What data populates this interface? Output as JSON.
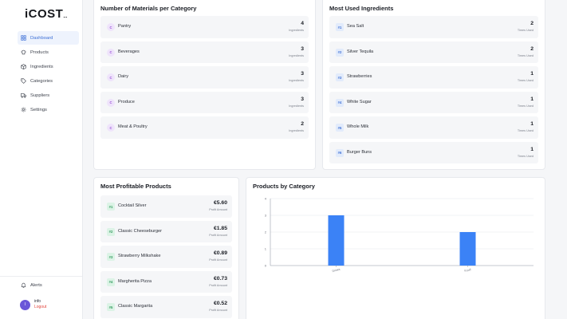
{
  "sidebar": {
    "logo": "iCOST",
    "logo_suffix": "...",
    "items": [
      {
        "label": "Dashboard",
        "icon": "dashboard-icon",
        "active": true
      },
      {
        "label": "Products",
        "icon": "chef-hat-icon"
      },
      {
        "label": "Ingredients",
        "icon": "box-icon"
      },
      {
        "label": "Categories",
        "icon": "tag-icon"
      },
      {
        "label": "Suppliers",
        "icon": "truck-icon"
      },
      {
        "label": "Settings",
        "icon": "gear-icon"
      }
    ],
    "alerts_label": "Alerts",
    "user": {
      "initial": "I",
      "name": "info",
      "logout": "Logout"
    }
  },
  "materials_card": {
    "title": "Number of Materials per Category",
    "sub_label": "Ingredients",
    "items": [
      {
        "badge": "C",
        "label": "Pantry",
        "value": "4"
      },
      {
        "badge": "C",
        "label": "Beverages",
        "value": "3"
      },
      {
        "badge": "C",
        "label": "Dairy",
        "value": "3"
      },
      {
        "badge": "C",
        "label": "Produce",
        "value": "3"
      },
      {
        "badge": "C",
        "label": "Meat & Poultry",
        "value": "2"
      }
    ]
  },
  "ingredients_card": {
    "title": "Most Used Ingredients",
    "sub_label": "Times Used",
    "items": [
      {
        "badge": "#1",
        "label": "Sea Salt",
        "value": "2"
      },
      {
        "badge": "#2",
        "label": "Silver Tequila",
        "value": "2"
      },
      {
        "badge": "#3",
        "label": "Strawberries",
        "value": "1"
      },
      {
        "badge": "#4",
        "label": "White Sugar",
        "value": "1"
      },
      {
        "badge": "#5",
        "label": "Whole Milk",
        "value": "1"
      },
      {
        "badge": "#6",
        "label": "Burger Buns",
        "value": "1"
      }
    ]
  },
  "profitable_card": {
    "title": "Most Profitable Products",
    "sub_label": "Profit Amount",
    "items": [
      {
        "badge": "#1",
        "label": "Cocktail Silver",
        "value": "€5.60"
      },
      {
        "badge": "#2",
        "label": "Classic Cheeseburger",
        "value": "€1.85"
      },
      {
        "badge": "#3",
        "label": "Strawberry Milkshake",
        "value": "€0.89"
      },
      {
        "badge": "#4",
        "label": "Margherita Pizza",
        "value": "€0.73"
      },
      {
        "badge": "#5",
        "label": "Classic Margarita",
        "value": "€0.52"
      }
    ]
  },
  "chart_card": {
    "title": "Products by Category"
  },
  "chart_data": {
    "type": "bar",
    "categories": [
      "Drinks",
      "Food"
    ],
    "values": [
      3,
      2
    ],
    "ylim": [
      0,
      4
    ],
    "yticks": [
      "0",
      "1",
      "2",
      "3",
      "4"
    ],
    "grid": true,
    "bar_color": "#3b82f6"
  }
}
